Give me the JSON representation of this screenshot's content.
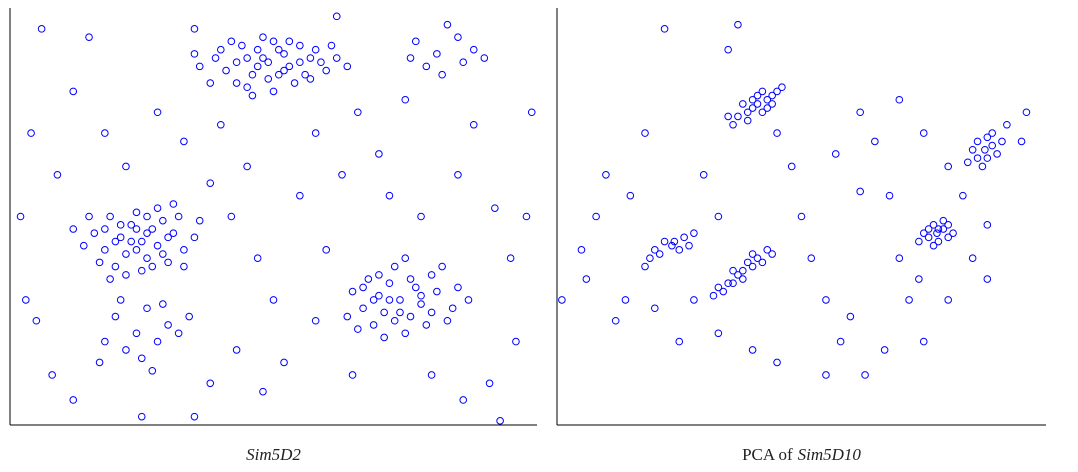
{
  "chart_data": [
    {
      "type": "scatter",
      "color": "#0000ff",
      "xlim": [
        0,
        100
      ],
      "ylim": [
        0,
        100
      ],
      "caption": [
        {
          "text": "Sim5D2",
          "italic": true
        }
      ],
      "x": [
        49,
        45,
        53,
        41,
        57,
        47,
        51,
        43,
        55,
        39,
        60,
        48,
        50,
        44,
        54,
        58,
        36,
        62,
        46,
        52,
        42,
        56,
        49,
        38,
        61,
        47,
        53,
        40,
        64,
        45,
        51,
        57,
        35,
        48,
        55,
        43,
        59,
        50,
        46,
        52,
        25,
        21,
        28,
        18,
        31,
        23,
        26,
        20,
        29,
        16,
        33,
        24,
        22,
        27,
        19,
        30,
        14,
        35,
        25,
        23,
        28,
        17,
        32,
        21,
        26,
        20,
        29,
        24,
        12,
        36,
        22,
        27,
        15,
        31,
        24,
        18,
        33,
        26,
        19,
        30,
        74,
        70,
        78,
        67,
        81,
        72,
        76,
        69,
        80,
        65,
        84,
        73,
        71,
        77,
        68,
        79,
        64,
        85,
        75,
        72,
        82,
        66,
        76,
        70,
        78,
        74,
        83,
        69,
        73,
        87,
        67,
        80,
        75,
        71,
        20,
        24,
        28,
        22,
        30,
        18,
        26,
        32,
        17,
        25,
        29,
        21,
        34,
        27,
        77,
        81,
        85,
        79,
        88,
        83,
        76,
        90,
        82,
        86,
        2,
        6,
        4,
        9,
        3,
        12,
        15,
        8,
        5,
        18,
        22,
        28,
        33,
        38,
        35,
        40,
        42,
        45,
        47,
        50,
        43,
        38,
        48,
        52,
        55,
        58,
        60,
        63,
        66,
        70,
        72,
        75,
        78,
        85,
        88,
        92,
        95,
        98,
        96,
        91,
        86,
        80,
        65,
        58,
        12,
        25,
        35,
        93,
        99,
        62
      ],
      "values": [
        87,
        88,
        86,
        85,
        88,
        90,
        84,
        82,
        91,
        88,
        85,
        93,
        80,
        91,
        82,
        90,
        86,
        88,
        84,
        89,
        92,
        84,
        83,
        82,
        91,
        86,
        92,
        90,
        86,
        81,
        90,
        83,
        89,
        88,
        87,
        87,
        87,
        92,
        79,
        85,
        44,
        45,
        43,
        42,
        46,
        48,
        40,
        38,
        49,
        46,
        42,
        51,
        41,
        47,
        50,
        39,
        43,
        45,
        37,
        44,
        52,
        39,
        50,
        48,
        46,
        44,
        41,
        42,
        47,
        49,
        36,
        38,
        50,
        53,
        47,
        47,
        38,
        50,
        35,
        45,
        30,
        31,
        29,
        28,
        32,
        34,
        26,
        24,
        36,
        32,
        28,
        38,
        27,
        33,
        35,
        24,
        26,
        33,
        22,
        30,
        38,
        23,
        35,
        36,
        31,
        27,
        25,
        30,
        25,
        30,
        33,
        27,
        40,
        21,
        26,
        22,
        20,
        18,
        24,
        20,
        28,
        22,
        15,
        16,
        29,
        30,
        26,
        13,
        92,
        89,
        93,
        86,
        90,
        96,
        88,
        88,
        84,
        87,
        50,
        95,
        70,
        60,
        30,
        80,
        93,
        12,
        25,
        70,
        62,
        75,
        68,
        58,
        95,
        72,
        50,
        62,
        40,
        30,
        18,
        10,
        8,
        15,
        55,
        70,
        42,
        60,
        75,
        65,
        55,
        78,
        50,
        60,
        72,
        52,
        40,
        50,
        20,
        10,
        6,
        12,
        12,
        25,
        6,
        2,
        2,
        1,
        75,
        98
      ]
    },
    {
      "type": "scatter",
      "color": "#0000ff",
      "xlim": [
        0,
        100
      ],
      "ylim": [
        0,
        100
      ],
      "caption": [
        {
          "text": "PCA of",
          "italic": false
        },
        {
          "text": "Sim5D10",
          "italic": true
        }
      ],
      "x": [
        41,
        39,
        43,
        37,
        45,
        40,
        42,
        38,
        44,
        36,
        46,
        41,
        39,
        43,
        40,
        35,
        42,
        44,
        87.5,
        86,
        89,
        88,
        85,
        90,
        87,
        86,
        89,
        84,
        91,
        88,
        23.5,
        21,
        26,
        19,
        28,
        22,
        25,
        18,
        24,
        20,
        27,
        38,
        35,
        41,
        33,
        43,
        37,
        39,
        34,
        40,
        36,
        42,
        32,
        44,
        38,
        36,
        40,
        77.7,
        76,
        79,
        77,
        75,
        80,
        78,
        76,
        79,
        77,
        81,
        74,
        78,
        80,
        1,
        5,
        8,
        10,
        6,
        12,
        15,
        18,
        14,
        20,
        25,
        28,
        30,
        33,
        35,
        37,
        22,
        45,
        48,
        50,
        52,
        55,
        58,
        60,
        62,
        65,
        68,
        70,
        72,
        75,
        63,
        55,
        45,
        33,
        40,
        85,
        88,
        83,
        80,
        75,
        70,
        62,
        92,
        95,
        96,
        88,
        80,
        74,
        67,
        57
      ],
      "values": [
        77,
        75,
        78,
        74,
        80,
        78,
        75,
        77,
        77,
        72,
        81,
        79,
        73,
        76,
        76,
        74,
        80,
        79,
        66,
        64,
        67,
        69,
        66,
        65,
        62,
        68,
        70,
        63,
        68,
        64,
        43,
        41,
        45,
        40,
        46,
        44,
        42,
        38,
        44,
        42,
        43,
        37,
        34,
        40,
        33,
        42,
        36,
        39,
        32,
        38,
        37,
        39,
        31,
        41,
        35,
        34,
        41,
        46,
        45,
        47,
        48,
        46,
        45,
        44,
        47,
        49,
        43,
        46,
        44,
        47,
        48,
        30,
        42,
        50,
        60,
        35,
        25,
        55,
        70,
        30,
        28,
        20,
        30,
        60,
        50,
        90,
        96,
        95,
        70,
        62,
        50,
        40,
        30,
        20,
        26,
        56,
        68,
        55,
        40,
        30,
        20,
        12,
        12,
        15,
        22,
        18,
        40,
        48,
        55,
        62,
        70,
        78,
        75,
        72,
        68,
        75,
        35,
        30,
        35,
        18,
        65
      ]
    }
  ]
}
